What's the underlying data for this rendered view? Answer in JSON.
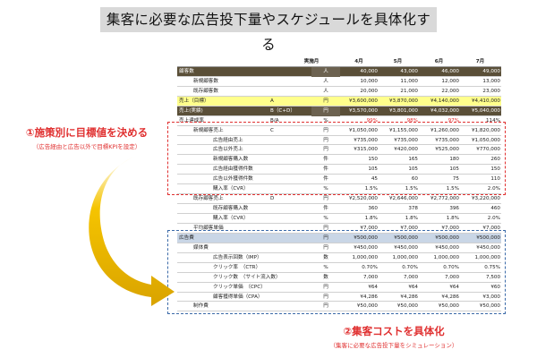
{
  "title": "集客に必要な広告投下量やスケジュールを具体化する",
  "table": {
    "header": {
      "label": "実施月",
      "unit": "",
      "months": [
        "4月",
        "5月",
        "6月",
        "7月"
      ]
    },
    "rows": [
      {
        "label": "顧客数",
        "key": "",
        "unit": "人",
        "values": [
          "40,000",
          "43,000",
          "46,000",
          "49,000"
        ],
        "style": "dark",
        "indent": 0
      },
      {
        "label": "新規顧客数",
        "key": "",
        "unit": "人",
        "values": [
          "10,000",
          "11,000",
          "12,000",
          "13,000"
        ],
        "style": "",
        "indent": 1
      },
      {
        "label": "既存顧客数",
        "key": "",
        "unit": "人",
        "values": [
          "20,000",
          "21,000",
          "22,000",
          "23,000"
        ],
        "style": "",
        "indent": 1
      },
      {
        "label": "売上（目標）",
        "key": "A",
        "unit": "円",
        "values": [
          "¥3,600,000",
          "¥3,870,000",
          "¥4,140,000",
          "¥4,410,000"
        ],
        "style": "yellow",
        "indent": 0
      },
      {
        "label": "売上(実績)",
        "key": "B（C+D）",
        "unit": "円",
        "values": [
          "¥3,570,000",
          "¥3,801,000",
          "¥4,032,000",
          "¥5,040,000"
        ],
        "style": "dark",
        "indent": 0
      },
      {
        "label": "売上達成率",
        "key": "B/A",
        "unit": "%",
        "values": [
          "99%",
          "98%",
          "97%",
          "114%"
        ],
        "style": "",
        "indent": 0,
        "red": [
          true,
          true,
          true,
          false
        ]
      },
      {
        "label": "新規顧客売上",
        "key": "C",
        "unit": "円",
        "values": [
          "¥1,050,000",
          "¥1,155,000",
          "¥1,260,000",
          "¥1,820,000"
        ],
        "style": "",
        "indent": 1
      },
      {
        "label": "広告経由売上",
        "key": "",
        "unit": "円",
        "values": [
          "¥735,000",
          "¥735,000",
          "¥735,000",
          "¥1,050,000"
        ],
        "style": "",
        "indent": 2
      },
      {
        "label": "広告以外売上",
        "key": "",
        "unit": "円",
        "values": [
          "¥315,000",
          "¥420,000",
          "¥525,000",
          "¥770,000"
        ],
        "style": "",
        "indent": 2
      },
      {
        "label": "新規顧客購入数",
        "key": "",
        "unit": "件",
        "values": [
          "150",
          "165",
          "180",
          "260"
        ],
        "style": "",
        "indent": 2
      },
      {
        "label": "広告経由獲得件数",
        "key": "",
        "unit": "件",
        "values": [
          "105",
          "105",
          "105",
          "150"
        ],
        "style": "",
        "indent": 2
      },
      {
        "label": "広告以外獲得件数",
        "key": "",
        "unit": "件",
        "values": [
          "45",
          "60",
          "75",
          "110"
        ],
        "style": "",
        "indent": 2
      },
      {
        "label": "購入率（CVR）",
        "key": "",
        "unit": "%",
        "values": [
          "1.5%",
          "1.5%",
          "1.5%",
          "2.0%"
        ],
        "style": "",
        "indent": 2
      },
      {
        "label": "既存顧客売上",
        "key": "D",
        "unit": "円",
        "values": [
          "¥2,520,000",
          "¥2,646,000",
          "¥2,772,000",
          "¥3,220,000"
        ],
        "style": "",
        "indent": 1
      },
      {
        "label": "既存顧客購入数",
        "key": "",
        "unit": "件",
        "values": [
          "360",
          "378",
          "396",
          "460"
        ],
        "style": "",
        "indent": 2
      },
      {
        "label": "購入率（CVR）",
        "key": "",
        "unit": "%",
        "values": [
          "1.8%",
          "1.8%",
          "1.8%",
          "2.0%"
        ],
        "style": "",
        "indent": 2
      },
      {
        "label": "平均顧客単価",
        "key": "",
        "unit": "円",
        "values": [
          "¥7,000",
          "¥7,000",
          "¥7,000",
          "¥7,000"
        ],
        "style": "",
        "indent": 1
      },
      {
        "label": "広告費",
        "key": "",
        "unit": "円",
        "values": [
          "¥500,000",
          "¥500,000",
          "¥500,000",
          "¥500,000"
        ],
        "style": "sel",
        "indent": 0
      },
      {
        "label": "媒体費",
        "key": "",
        "unit": "円",
        "values": [
          "¥450,000",
          "¥450,000",
          "¥450,000",
          "¥450,000"
        ],
        "style": "",
        "indent": 1
      },
      {
        "label": "広告表示回数（IMP）",
        "key": "",
        "unit": "数",
        "values": [
          "1,000,000",
          "1,000,000",
          "1,000,000",
          "1,000,000"
        ],
        "style": "",
        "indent": 2
      },
      {
        "label": "クリック率　（CTR）",
        "key": "",
        "unit": "%",
        "values": [
          "0.70%",
          "0.70%",
          "0.70%",
          "0.75%"
        ],
        "style": "",
        "indent": 2
      },
      {
        "label": "クリック数　（サイト流入数）",
        "key": "",
        "unit": "数",
        "values": [
          "7,000",
          "7,000",
          "7,000",
          "7,500"
        ],
        "style": "",
        "indent": 2
      },
      {
        "label": "クリック単価　（CPC）",
        "key": "",
        "unit": "円",
        "values": [
          "¥64",
          "¥64",
          "¥64",
          "¥60"
        ],
        "style": "",
        "indent": 2
      },
      {
        "label": "顧客獲得単価（CPA）",
        "key": "",
        "unit": "円",
        "values": [
          "¥4,286",
          "¥4,286",
          "¥4,286",
          "¥3,000"
        ],
        "style": "",
        "indent": 2
      },
      {
        "label": "制作費",
        "key": "",
        "unit": "円",
        "values": [
          "¥50,000",
          "¥50,000",
          "¥50,000",
          "¥50,000"
        ],
        "style": "",
        "indent": 1
      }
    ]
  },
  "note1": {
    "title": "①施策別に目標値を決める",
    "sub": "（広告経由と広告以外で目標KPIを設定）"
  },
  "note2": {
    "title": "②集客コストを具体化",
    "sub": "（集客に必要な広告投下量をシミュレーション）"
  },
  "colors": {
    "red": "#e03030",
    "blue": "#3b6aa8",
    "gold": "#e8b100",
    "dark_row": "#5a4f38",
    "yellow_row": "#ffff8c",
    "select_row": "#c9d6e6"
  }
}
